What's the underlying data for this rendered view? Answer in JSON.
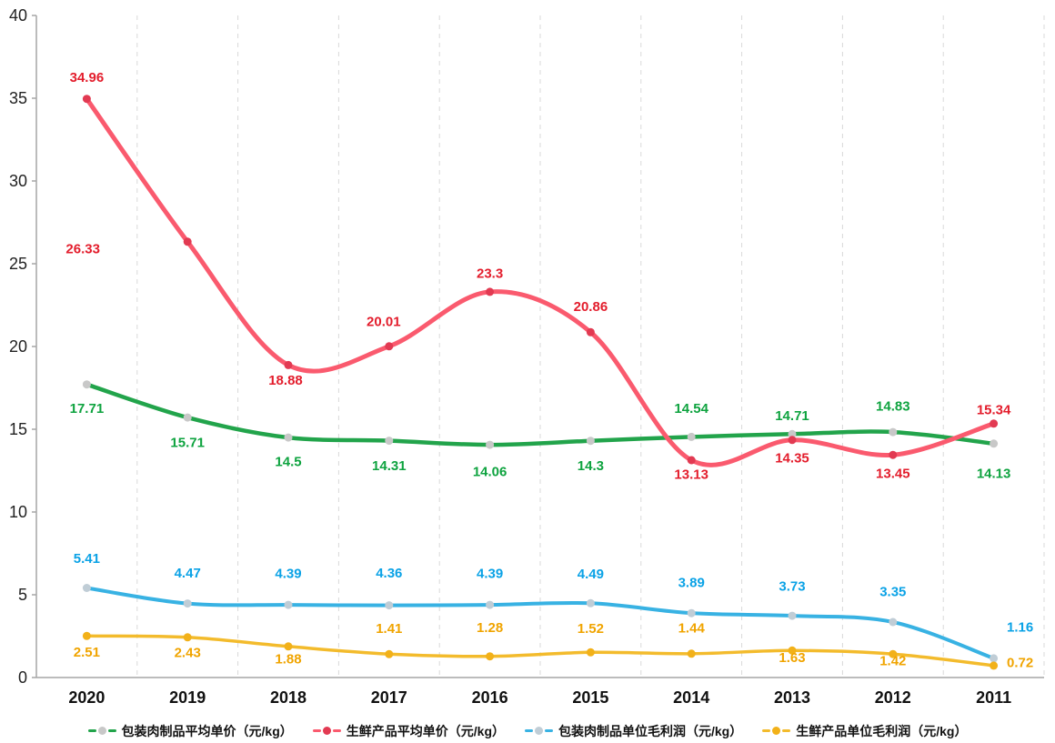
{
  "chart_data": {
    "type": "line",
    "title": "",
    "xlabel": "",
    "ylabel": "",
    "categories": [
      "2020",
      "2019",
      "2018",
      "2017",
      "2016",
      "2015",
      "2014",
      "2013",
      "2012",
      "2011"
    ],
    "ylim": [
      0,
      40
    ],
    "y_ticks": [
      0,
      5,
      10,
      15,
      20,
      25,
      30,
      35,
      40
    ],
    "grid": "vertical-dashed",
    "grid_color": "#d9d9d9",
    "axis_color": "#a6a6a6",
    "legend_position": "bottom",
    "smooth": true,
    "series": [
      {
        "name": "包装肉制品平均单价（元/kg）",
        "values": [
          17.71,
          15.71,
          14.5,
          14.31,
          14.06,
          14.3,
          14.54,
          14.71,
          14.83,
          14.13
        ],
        "line_color": "#22a44b",
        "marker_color": "#c8c8c8",
        "label_color": "#0ea33f",
        "line_width": 4.5,
        "label_offsets": [
          [
            0,
            27
          ],
          [
            0,
            28
          ],
          [
            0,
            27
          ],
          [
            0,
            28
          ],
          [
            0,
            30
          ],
          [
            0,
            28
          ],
          [
            0,
            -31
          ],
          [
            0,
            -20
          ],
          [
            0,
            -28
          ],
          [
            0,
            33
          ]
        ]
      },
      {
        "name": "生鲜产品平均单价（元/kg）",
        "values": [
          34.96,
          26.33,
          18.88,
          20.01,
          23.3,
          20.86,
          13.13,
          14.35,
          13.45,
          15.34
        ],
        "line_color": "#fa5a6e",
        "marker_color": "#e23a52",
        "label_color": "#e31d2c",
        "line_width": 5,
        "label_offsets": [
          [
            0,
            -23
          ],
          [
            -115,
            8
          ],
          [
            -3,
            17
          ],
          [
            -6,
            -27
          ],
          [
            0,
            -20
          ],
          [
            0,
            -28
          ],
          [
            0,
            16
          ],
          [
            0,
            20
          ],
          [
            0,
            21
          ],
          [
            0,
            -15
          ]
        ]
      },
      {
        "name": "包装肉制品单位毛利润（元/kg）",
        "values": [
          5.41,
          4.47,
          4.39,
          4.36,
          4.39,
          4.49,
          3.89,
          3.73,
          3.35,
          1.16
        ],
        "line_color": "#38b2e3",
        "marker_color": "#c0cdd6",
        "label_color": "#0aa2e6",
        "line_width": 4,
        "label_offsets": [
          [
            0,
            -32
          ],
          [
            0,
            -33
          ],
          [
            0,
            -34
          ],
          [
            0,
            -35
          ],
          [
            0,
            -34
          ],
          [
            0,
            -32
          ],
          [
            0,
            -33
          ],
          [
            0,
            -32
          ],
          [
            0,
            -33
          ],
          [
            29,
            -34
          ]
        ]
      },
      {
        "name": "生鲜产品单位毛利润（元/kg）",
        "values": [
          2.51,
          2.43,
          1.88,
          1.41,
          1.28,
          1.52,
          1.44,
          1.63,
          1.42,
          0.72
        ],
        "line_color": "#f3bb2c",
        "marker_color": "#f2b119",
        "label_color": "#f0a400",
        "line_width": 3.5,
        "label_offsets": [
          [
            0,
            18
          ],
          [
            0,
            17
          ],
          [
            0,
            14
          ],
          [
            0,
            -28
          ],
          [
            0,
            -31
          ],
          [
            0,
            -26
          ],
          [
            0,
            -28
          ],
          [
            0,
            8
          ],
          [
            0,
            8
          ],
          [
            29,
            -3
          ]
        ]
      }
    ]
  }
}
